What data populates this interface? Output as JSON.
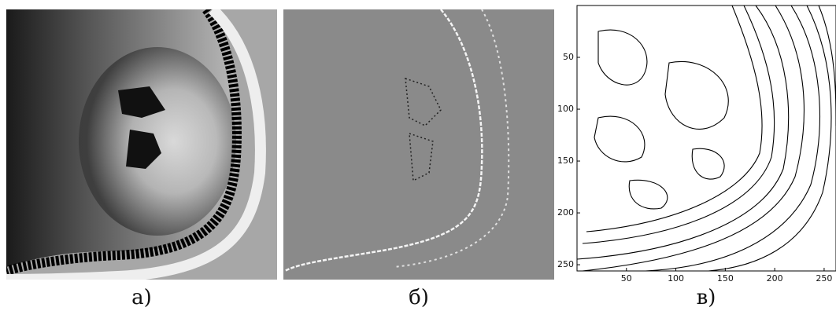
{
  "panels": [
    {
      "label": "а)"
    },
    {
      "label": "б)"
    },
    {
      "label": "в)"
    }
  ],
  "plot": {
    "xlim": [
      0,
      262
    ],
    "ylim": [
      0,
      256
    ],
    "y_inverted": true,
    "xticks": [
      50,
      100,
      150,
      200,
      250
    ],
    "yticks": [
      50,
      100,
      150,
      200,
      250
    ]
  }
}
